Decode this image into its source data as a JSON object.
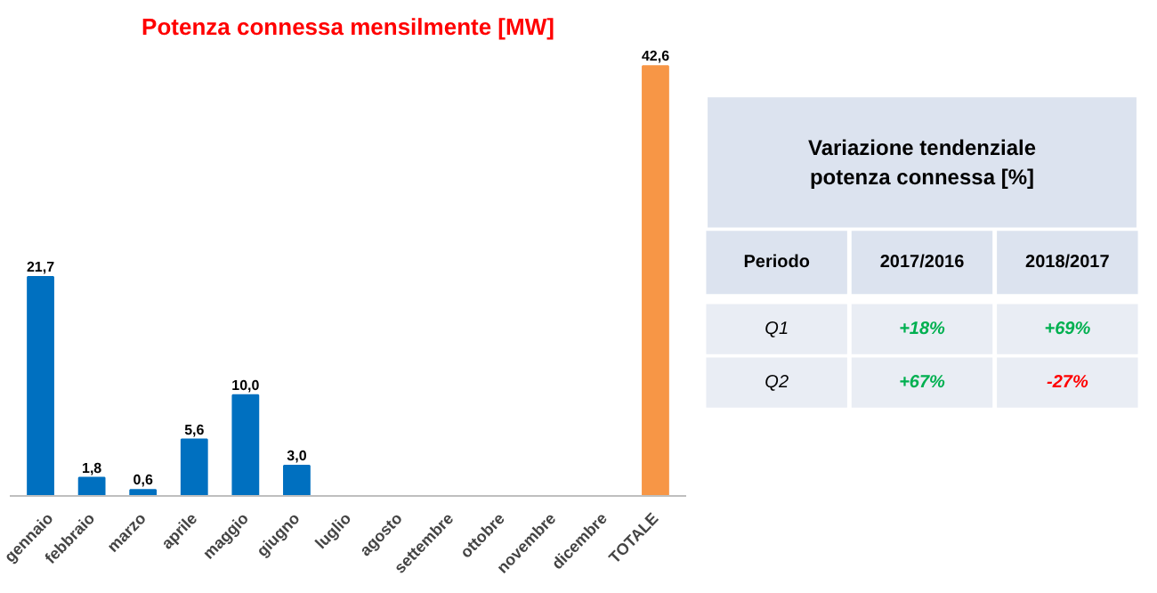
{
  "chart_data": [
    {
      "type": "bar",
      "title": "Potenza connessa mensilmente [MW]",
      "categories": [
        "gennaio",
        "febbraio",
        "marzo",
        "aprile",
        "maggio",
        "giugno",
        "luglio",
        "agosto",
        "settembre",
        "ottobre",
        "novembre",
        "dicembre",
        "TOTALE"
      ],
      "values": [
        21.7,
        1.8,
        0.6,
        5.6,
        10.0,
        3.0,
        null,
        null,
        null,
        null,
        null,
        null,
        42.6
      ],
      "value_labels": [
        "21,7",
        "1,8",
        "0,6",
        "5,6",
        "10,0",
        "3,0",
        null,
        null,
        null,
        null,
        null,
        null,
        "42,6"
      ],
      "colors": [
        "#0070c0",
        "#0070c0",
        "#0070c0",
        "#0070c0",
        "#0070c0",
        "#0070c0",
        "#0070c0",
        "#0070c0",
        "#0070c0",
        "#0070c0",
        "#0070c0",
        "#0070c0",
        "#f79646"
      ]
    },
    {
      "type": "other",
      "title": "Variazione tendenziale potenza connessa [%]",
      "ylabel": "Periodo",
      "categories": [
        "2017/2016",
        "2018/2017"
      ],
      "y_categories": [
        "Q1",
        "Q2"
      ],
      "cell_labels": [
        [
          "+18%",
          "+69%"
        ],
        [
          "+67%",
          "-27%"
        ]
      ],
      "colors": [
        [
          "#00b050",
          "#00b050"
        ],
        [
          "#00b050",
          "#ff0000"
        ]
      ]
    }
  ]
}
